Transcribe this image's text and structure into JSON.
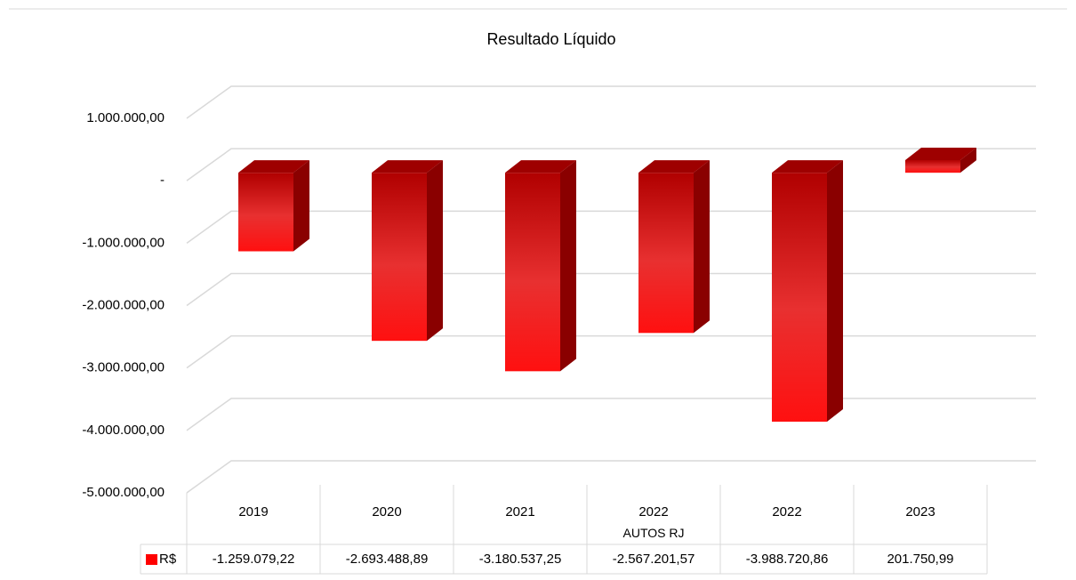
{
  "chart_data": {
    "type": "bar3d",
    "title": "Resultado Líquido",
    "categories": [
      "2019",
      "2020",
      "2021",
      "2022\nAUTOS RJ",
      "2022",
      "2023"
    ],
    "series": [
      {
        "name": "R$",
        "color": "#ff0000",
        "values": [
          -1259079.22,
          -2693488.89,
          -3180537.25,
          -2567201.57,
          -3988720.86,
          201750.99
        ],
        "value_labels": [
          "-1.259.079,22",
          "-2.693.488,89",
          "-3.180.537,25",
          "-2.567.201,57",
          "-3.988.720,86",
          "201.750,99"
        ]
      }
    ],
    "ylim": [
      -5000000,
      1000000
    ],
    "yticks": [
      {
        "value": -5000000,
        "label": "-5.000.000,00"
      },
      {
        "value": -4000000,
        "label": "-4.000.000,00"
      },
      {
        "value": -3000000,
        "label": "-3.000.000,00"
      },
      {
        "value": -2000000,
        "label": "-2.000.000,00"
      },
      {
        "value": -1000000,
        "label": "-1.000.000,00"
      },
      {
        "value": 0,
        "label": "-"
      },
      {
        "value": 1000000,
        "label": "1.000.000,00"
      }
    ],
    "grid": true,
    "data_table": true
  }
}
